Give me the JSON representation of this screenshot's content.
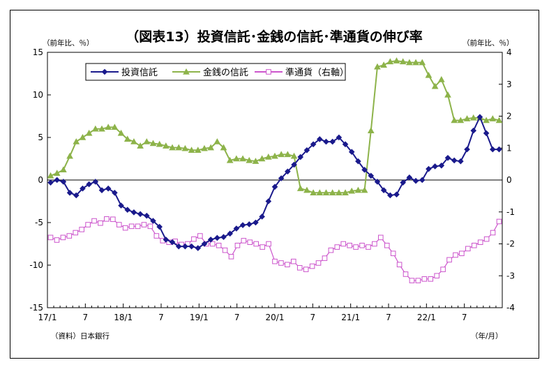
{
  "chart_data": {
    "type": "line",
    "title": "（図表13）投資信託･金銭の信託･準通貨の伸び率",
    "left_unit": "（前年比、％）",
    "right_unit": "（前年比、％）",
    "source": "（資料）日本銀行",
    "x_unit": "（年/月）",
    "x_tick_labels": [
      "17/1",
      "7",
      "18/1",
      "7",
      "19/1",
      "7",
      "20/1",
      "7",
      "21/1",
      "7",
      "22/1",
      "7"
    ],
    "left_axis": {
      "min": -15,
      "max": 15,
      "ticks": [
        -15,
        -10,
        -5,
        0,
        5,
        10,
        15
      ]
    },
    "right_axis": {
      "min": -4,
      "max": 4,
      "ticks": [
        -4,
        -3,
        -2,
        -1,
        0,
        1,
        2,
        3,
        4
      ]
    },
    "grid": false,
    "legend_position": "top-left",
    "series": [
      {
        "name": "投資信託",
        "axis": "left",
        "color": "#1a1a8c",
        "marker": "diamond",
        "values": [
          -0.3,
          0.0,
          -0.2,
          -1.5,
          -1.8,
          -1.0,
          -0.5,
          -0.2,
          -1.2,
          -1.0,
          -1.5,
          -3.0,
          -3.5,
          -3.8,
          -4.0,
          -4.2,
          -4.8,
          -5.5,
          -7.0,
          -7.3,
          -7.8,
          -7.8,
          -7.8,
          -8.0,
          -7.5,
          -7.0,
          -6.8,
          -6.7,
          -6.3,
          -5.7,
          -5.3,
          -5.2,
          -5.0,
          -4.3,
          -2.5,
          -0.8,
          0.2,
          1.0,
          1.8,
          2.7,
          3.5,
          4.2,
          4.8,
          4.5,
          4.5,
          5.0,
          4.2,
          3.3,
          2.2,
          1.2,
          0.5,
          -0.2,
          -1.2,
          -1.8,
          -1.7,
          -0.3,
          0.3,
          -0.1,
          0.0,
          1.3,
          1.6,
          1.7,
          2.6,
          2.3,
          2.2,
          3.6,
          5.8,
          7.4,
          5.5,
          3.6,
          3.6
        ]
      },
      {
        "name": "金銭の信託",
        "axis": "left",
        "color": "#8db34a",
        "marker": "triangle",
        "values": [
          0.5,
          0.8,
          1.2,
          2.8,
          4.5,
          5.0,
          5.5,
          6.0,
          6.0,
          6.2,
          6.2,
          5.5,
          4.8,
          4.5,
          4.0,
          4.5,
          4.3,
          4.2,
          4.0,
          3.8,
          3.8,
          3.7,
          3.5,
          3.5,
          3.7,
          3.8,
          4.5,
          3.8,
          2.3,
          2.5,
          2.5,
          2.3,
          2.2,
          2.5,
          2.7,
          2.8,
          3.0,
          3.0,
          2.8,
          -1.0,
          -1.2,
          -1.5,
          -1.5,
          -1.5,
          -1.5,
          -1.5,
          -1.5,
          -1.3,
          -1.2,
          -1.2,
          5.8,
          13.3,
          13.5,
          13.9,
          14.0,
          13.9,
          13.8,
          13.8,
          13.8,
          12.3,
          11.0,
          11.8,
          10.0,
          7.0,
          7.0,
          7.2,
          7.3,
          7.3,
          7.0,
          7.2,
          7.0
        ]
      },
      {
        "name": "準通貨（右軸）",
        "axis": "right",
        "color": "#cc55cc",
        "marker": "square",
        "values": [
          -1.8,
          -1.88,
          -1.8,
          -1.75,
          -1.65,
          -1.55,
          -1.4,
          -1.28,
          -1.35,
          -1.22,
          -1.23,
          -1.4,
          -1.5,
          -1.45,
          -1.45,
          -1.4,
          -1.45,
          -1.75,
          -1.9,
          -1.95,
          -1.92,
          -2.02,
          -2.0,
          -1.85,
          -1.75,
          -2.0,
          -2.0,
          -2.05,
          -2.2,
          -2.4,
          -2.05,
          -1.9,
          -1.95,
          -2.0,
          -2.1,
          -2.0,
          -2.55,
          -2.6,
          -2.65,
          -2.55,
          -2.75,
          -2.8,
          -2.7,
          -2.6,
          -2.45,
          -2.2,
          -2.1,
          -2.0,
          -2.05,
          -2.1,
          -2.05,
          -2.1,
          -2.0,
          -1.8,
          -2.05,
          -2.3,
          -2.65,
          -2.95,
          -3.15,
          -3.15,
          -3.1,
          -3.1,
          -3.0,
          -2.8,
          -2.5,
          -2.35,
          -2.3,
          -2.15,
          -2.05,
          -1.95,
          -1.85,
          -1.65,
          -1.3
        ]
      }
    ]
  }
}
